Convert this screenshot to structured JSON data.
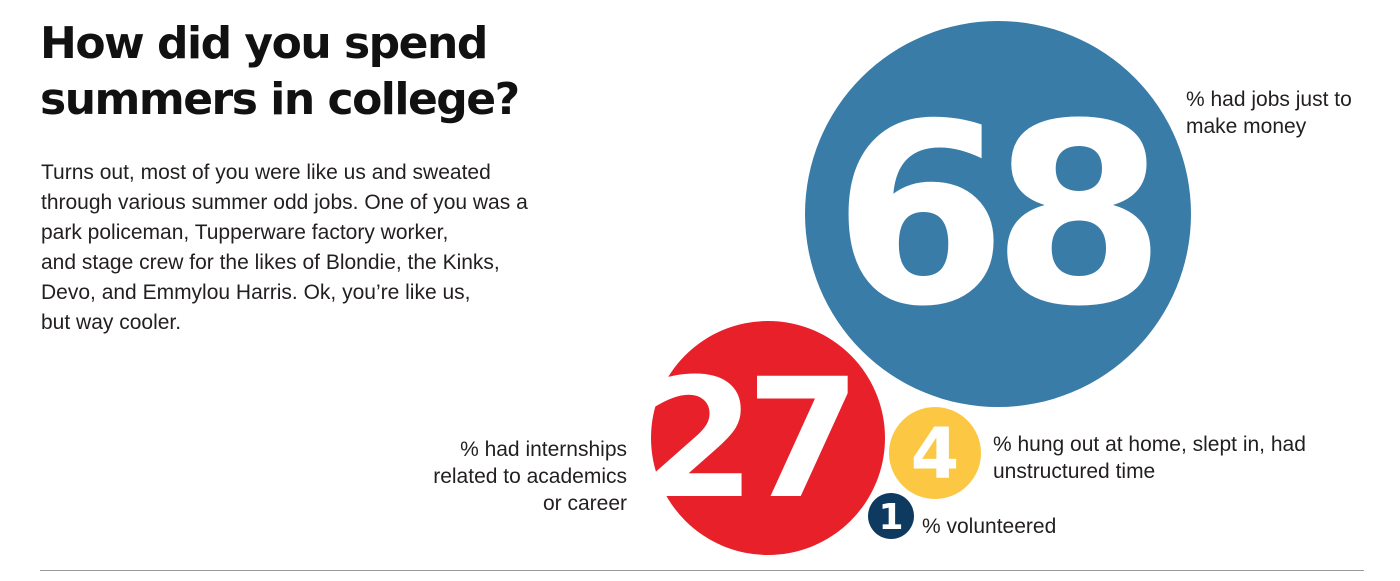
{
  "title_lines": [
    "How did you spend",
    "summers in college?"
  ],
  "intro_lines": [
    "Turns out, most of you were like us and sweated",
    "through various summer odd jobs. One of you was a",
    "park policeman, Tupperware factory worker,",
    "and stage crew for the likes of Blondie, the Kinks,",
    "Devo, and Emmylou Harris. Ok, you’re like us,",
    "but way cooler."
  ],
  "colors": {
    "blue": "#3a7ca8",
    "red": "#e8202a",
    "yellow": "#fcc844",
    "navy": "#0f3a5f",
    "text": "#231f20"
  },
  "chart_data": {
    "type": "bubble",
    "unit": "%",
    "items": [
      {
        "value": 68,
        "label_lines": [
          "% had jobs just to",
          "make money"
        ],
        "color": "#3a7ca8"
      },
      {
        "value": 27,
        "label_lines": [
          "% had internships",
          "related to academics",
          "or career"
        ],
        "color": "#e8202a"
      },
      {
        "value": 4,
        "label_lines": [
          "% hung out at home, slept in, had",
          "unstructured time"
        ],
        "color": "#fcc844"
      },
      {
        "value": 1,
        "label_lines": [
          "% volunteered"
        ],
        "color": "#0f3a5f"
      }
    ]
  }
}
